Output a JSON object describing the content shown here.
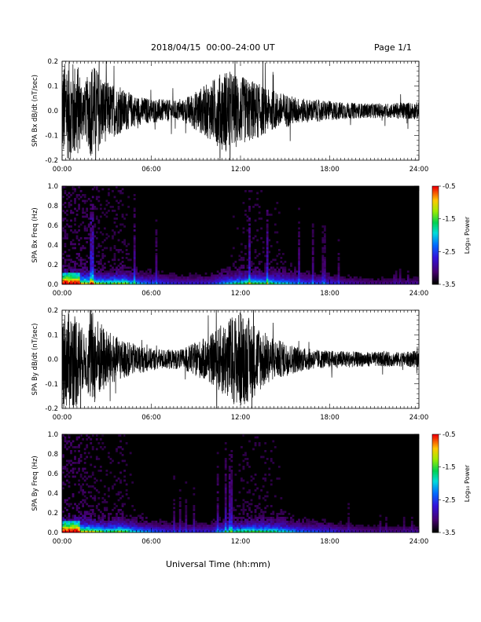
{
  "header": {
    "title": "2018/04/15  00:00–24:00 UT",
    "page": "Page 1/1"
  },
  "x_axis_title": "Universal Time (hh:mm)",
  "chart_data": [
    {
      "type": "line",
      "ylabel": "SPA Bx dB/dt (nT/sec)",
      "ylim": [
        -0.2,
        0.2
      ],
      "yticks": [
        "0.2",
        "0.1",
        "0.0",
        "-0.1",
        "-0.2"
      ],
      "xlim": [
        "00:00",
        "24:00"
      ],
      "xticks": [
        "00:00",
        "06:00",
        "12:00",
        "18:00",
        "24:00"
      ],
      "envelope": {
        "hours": [
          0,
          0.5,
          1,
          1.5,
          2,
          3,
          4,
          5,
          6,
          7,
          8,
          9,
          10,
          11,
          12,
          13,
          14,
          15,
          16,
          17,
          18,
          19,
          20,
          21,
          22,
          23,
          24
        ],
        "amplitude": [
          0.2,
          0.2,
          0.2,
          0.1,
          0.2,
          0.12,
          0.09,
          0.06,
          0.05,
          0.045,
          0.04,
          0.08,
          0.12,
          0.17,
          0.14,
          0.12,
          0.08,
          0.07,
          0.05,
          0.045,
          0.04,
          0.035,
          0.03,
          0.03,
          0.03,
          0.035,
          0.035
        ]
      }
    },
    {
      "type": "heatmap",
      "ylabel": "SPA Bx Freq (Hz)",
      "ylim": [
        0.0,
        1.0
      ],
      "yticks": [
        "1.0",
        "0.8",
        "0.6",
        "0.4",
        "0.2",
        "0.0"
      ],
      "xlim": [
        "00:00",
        "24:00"
      ],
      "xticks": [
        "00:00",
        "06:00",
        "12:00",
        "18:00",
        "24:00"
      ],
      "colorbar": {
        "label": "Log₁₀ Power",
        "ticks": [
          "-0.5",
          "-1.5",
          "-2.5",
          "-3.5"
        ],
        "range": [
          -3.5,
          -0.5
        ]
      }
    },
    {
      "type": "line",
      "ylabel": "SPA By dB/dt (nT/sec)",
      "ylim": [
        -0.2,
        0.2
      ],
      "yticks": [
        "0.2",
        "0.1",
        "0.0",
        "-0.1",
        "-0.2"
      ],
      "xlim": [
        "00:00",
        "24:00"
      ],
      "xticks": [
        "00:00",
        "06:00",
        "12:00",
        "18:00",
        "24:00"
      ],
      "envelope": {
        "hours": [
          0,
          0.5,
          1,
          1.5,
          2,
          3,
          4,
          5,
          6,
          7,
          8,
          9,
          10,
          11,
          12,
          13,
          14,
          15,
          16,
          17,
          18,
          19,
          20,
          21,
          22,
          23,
          24
        ],
        "amplitude": [
          0.2,
          0.2,
          0.2,
          0.1,
          0.2,
          0.12,
          0.08,
          0.06,
          0.045,
          0.04,
          0.04,
          0.07,
          0.1,
          0.16,
          0.2,
          0.15,
          0.09,
          0.07,
          0.05,
          0.04,
          0.035,
          0.035,
          0.03,
          0.03,
          0.03,
          0.03,
          0.035
        ]
      }
    },
    {
      "type": "heatmap",
      "ylabel": "SPA By Freq (Hz)",
      "ylim": [
        0.0,
        1.0
      ],
      "yticks": [
        "1.0",
        "0.8",
        "0.6",
        "0.4",
        "0.2",
        "0.0"
      ],
      "xlim": [
        "00:00",
        "24:00"
      ],
      "xticks": [
        "00:00",
        "06:00",
        "12:00",
        "18:00",
        "24:00"
      ],
      "colorbar": {
        "label": "Log₁₀ Power",
        "ticks": [
          "-0.5",
          "-1.5",
          "-2.5",
          "-3.5"
        ],
        "range": [
          -3.5,
          -0.5
        ]
      }
    }
  ]
}
